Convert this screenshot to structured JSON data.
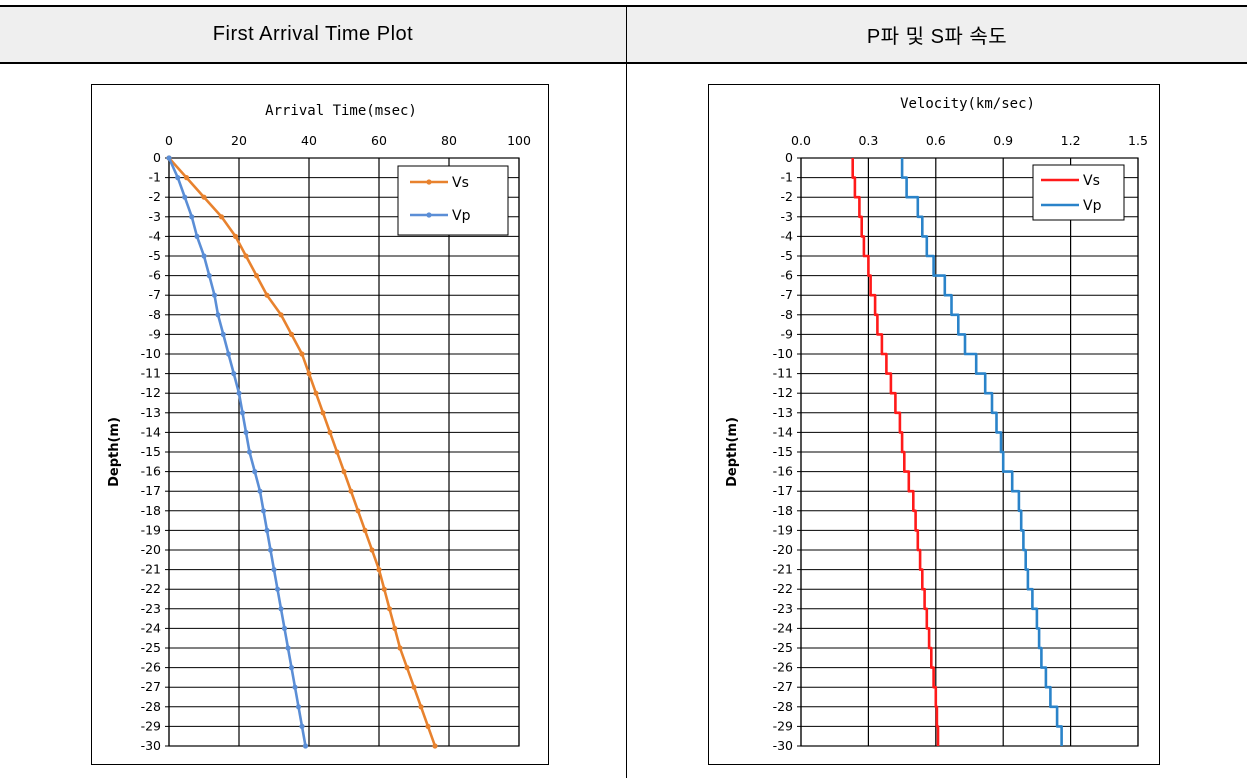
{
  "header": {
    "left_title": "First Arrival Time Plot",
    "right_title": "P파 및 S파 속도"
  },
  "chart_data": [
    {
      "type": "line",
      "title": "Arrival Time(msec)",
      "xlabel": "",
      "ylabel": "Depth(m)",
      "xlim": [
        0,
        100
      ],
      "ylim": [
        -30,
        0
      ],
      "x_ticks": [
        "0",
        "20",
        "40",
        "60",
        "80",
        "100"
      ],
      "y_ticks": [
        "0",
        "-1",
        "-2",
        "-3",
        "-4",
        "-5",
        "-6",
        "-7",
        "-8",
        "-9",
        "-10",
        "-11",
        "-12",
        "-13",
        "-14",
        "-15",
        "-16",
        "-17",
        "-18",
        "-19",
        "-20",
        "-21",
        "-22",
        "-23",
        "-24",
        "-25",
        "-26",
        "-27",
        "-28",
        "-29",
        "-30"
      ],
      "x_axis_position": "top",
      "grid": true,
      "legend_position": "top-right",
      "series": [
        {
          "name": "Vs",
          "color": "#e8822e",
          "marker": true,
          "depth": [
            0,
            -1,
            -2,
            -3,
            -4,
            -5,
            -6,
            -7,
            -8,
            -9,
            -10,
            -11,
            -12,
            -13,
            -14,
            -15,
            -16,
            -17,
            -18,
            -19,
            -20,
            -21,
            -22,
            -23,
            -24,
            -25,
            -26,
            -27,
            -28,
            -29,
            -30
          ],
          "values": [
            0,
            5,
            10,
            15,
            19,
            22,
            25,
            28,
            32,
            35,
            38,
            40,
            42,
            44,
            46,
            48,
            50,
            52,
            54,
            56,
            58,
            60,
            61.5,
            63,
            64.5,
            66,
            68,
            70,
            72,
            74,
            76
          ]
        },
        {
          "name": "Vp",
          "color": "#5b8ed6",
          "marker": true,
          "depth": [
            0,
            -1,
            -2,
            -3,
            -4,
            -5,
            -6,
            -7,
            -8,
            -9,
            -10,
            -11,
            -12,
            -13,
            -14,
            -15,
            -16,
            -17,
            -18,
            -19,
            -20,
            -21,
            -22,
            -23,
            -24,
            -25,
            -26,
            -27,
            -28,
            -29,
            -30
          ],
          "values": [
            0,
            2.5,
            4.5,
            6.5,
            8,
            10,
            11.5,
            13,
            14,
            15.5,
            17,
            18.5,
            20,
            21,
            22,
            23,
            24.5,
            26,
            27,
            28,
            29,
            30,
            31,
            32,
            33,
            34,
            35,
            36,
            37,
            38,
            39
          ]
        }
      ]
    },
    {
      "type": "line",
      "title": "Velocity(km/sec)",
      "xlabel": "",
      "ylabel": "Depth(m)",
      "xlim": [
        0,
        1.5
      ],
      "ylim": [
        -30,
        0
      ],
      "x_ticks": [
        "0.0",
        "0.3",
        "0.6",
        "0.9",
        "1.2",
        "1.5"
      ],
      "y_ticks": [
        "0",
        "-1",
        "-2",
        "-3",
        "-4",
        "-5",
        "-6",
        "-7",
        "-8",
        "-9",
        "-10",
        "-11",
        "-12",
        "-13",
        "-14",
        "-15",
        "-16",
        "-17",
        "-18",
        "-19",
        "-20",
        "-21",
        "-22",
        "-23",
        "-24",
        "-25",
        "-26",
        "-27",
        "-28",
        "-29",
        "-30"
      ],
      "x_axis_position": "top",
      "grid": true,
      "legend_position": "top-right",
      "step": true,
      "series": [
        {
          "name": "Vs",
          "color": "#ff1a1a",
          "values": [
            0.23,
            0.24,
            0.26,
            0.27,
            0.28,
            0.3,
            0.31,
            0.33,
            0.34,
            0.36,
            0.38,
            0.4,
            0.42,
            0.44,
            0.45,
            0.46,
            0.48,
            0.5,
            0.51,
            0.52,
            0.53,
            0.54,
            0.55,
            0.56,
            0.57,
            0.58,
            0.59,
            0.6,
            0.605,
            0.61
          ]
        },
        {
          "name": "Vp",
          "color": "#2a83c9",
          "values": [
            0.45,
            0.47,
            0.52,
            0.54,
            0.56,
            0.59,
            0.64,
            0.67,
            0.7,
            0.73,
            0.78,
            0.82,
            0.85,
            0.87,
            0.89,
            0.9,
            0.94,
            0.97,
            0.98,
            0.99,
            1.0,
            1.01,
            1.03,
            1.05,
            1.06,
            1.07,
            1.09,
            1.11,
            1.14,
            1.16
          ]
        }
      ]
    }
  ]
}
